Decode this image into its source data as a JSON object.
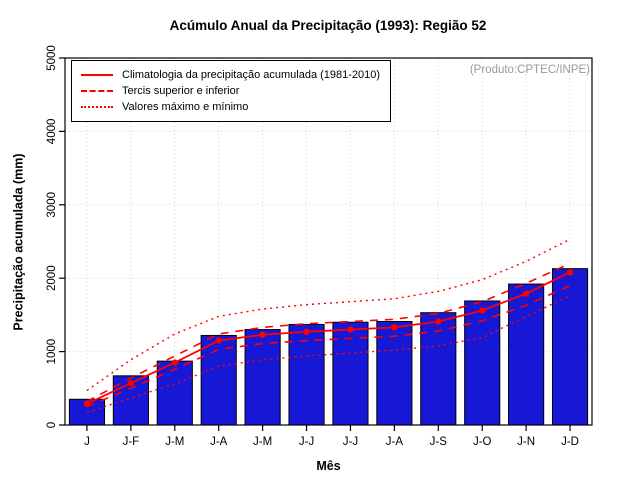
{
  "colors": {
    "bar": "#1717d6",
    "bar_border": "#000000",
    "line": "#ff0000",
    "grid": "#d4d4d4",
    "frame": "#000000",
    "annotation_text": "#999999"
  },
  "chart_data": {
    "type": "bar",
    "title": "Acúmulo Anual da Precipitação (1993): Região 52",
    "xlabel": "Mês",
    "ylabel": "Precipitação acumulada (mm)",
    "annotation": "(Produto:CPTEC/INPE)",
    "categories": [
      "J",
      "J-F",
      "J-M",
      "J-A",
      "J-M",
      "J-J",
      "J-J",
      "J-A",
      "J-S",
      "J-O",
      "J-N",
      "J-D"
    ],
    "values": [
      350,
      670,
      870,
      1220,
      1300,
      1370,
      1400,
      1410,
      1530,
      1690,
      1920,
      2130
    ],
    "series": [
      {
        "name": "Climatologia da precipitação acumulada (1981-2010)",
        "style": "solid",
        "markers": true,
        "values": [
          290,
          570,
          850,
          1150,
          1230,
          1270,
          1300,
          1330,
          1410,
          1560,
          1790,
          2080
        ]
      },
      {
        "name": "Tercil superior",
        "style": "dashed",
        "markers": false,
        "values": [
          320,
          640,
          940,
          1240,
          1330,
          1380,
          1410,
          1440,
          1520,
          1680,
          1930,
          2200
        ]
      },
      {
        "name": "Tercil inferior",
        "style": "dashed",
        "markers": false,
        "values": [
          250,
          500,
          760,
          1030,
          1110,
          1150,
          1180,
          1210,
          1280,
          1420,
          1630,
          1900
        ]
      },
      {
        "name": "Valor máximo",
        "style": "dotted",
        "markers": false,
        "values": [
          470,
          890,
          1240,
          1480,
          1580,
          1640,
          1680,
          1720,
          1820,
          1980,
          2230,
          2530
        ]
      },
      {
        "name": "Valor mínimo",
        "style": "dotted",
        "markers": false,
        "values": [
          170,
          370,
          560,
          800,
          890,
          940,
          980,
          1020,
          1080,
          1190,
          1480,
          1760
        ]
      }
    ],
    "ylim": [
      0,
      5000
    ],
    "yticks": [
      0,
      1000,
      2000,
      3000,
      4000,
      5000
    ],
    "grid": true,
    "legend_position": "top-left",
    "legend": {
      "items": [
        {
          "label": "Climatologia da precipitação acumulada (1981-2010)",
          "style": "solid"
        },
        {
          "label": "Tercis superior e inferior",
          "style": "dashed"
        },
        {
          "label": "Valores máximo e mínimo",
          "style": "dotted"
        }
      ]
    }
  }
}
